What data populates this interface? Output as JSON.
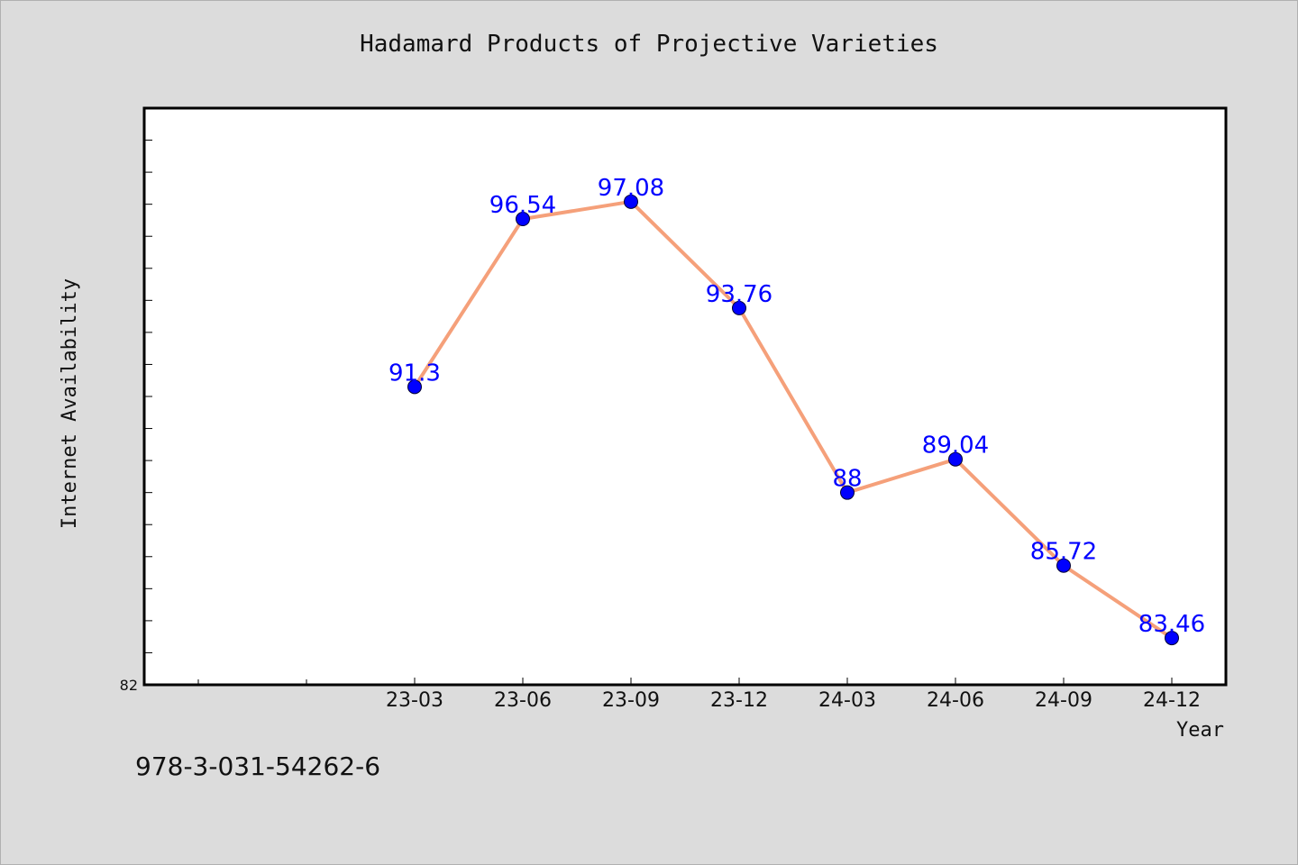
{
  "chart_data": {
    "type": "line",
    "title": "Hadamard Products of Projective Varieties",
    "xlabel": "Year",
    "ylabel": "Internet Availability",
    "categories": [
      "23-03",
      "23-06",
      "23-09",
      "23-12",
      "24-03",
      "24-06",
      "24-09",
      "24-12"
    ],
    "values": [
      91.3,
      96.54,
      97.08,
      93.76,
      88,
      89.04,
      85.72,
      83.46
    ],
    "data_labels": [
      "91.3",
      "96.54",
      "97.08",
      "93.76",
      "88",
      "89.04",
      "85.72",
      "83.46"
    ],
    "ylim": [
      82,
      100
    ],
    "y_tick_label": "82",
    "grid": false,
    "legend": "none",
    "colors": {
      "line": "#f5a07a",
      "marker": "#0000ff",
      "data_label": "#0000ff",
      "plot_background": "#ffffff",
      "figure_background": "#dcdcdc"
    }
  },
  "footer": {
    "text": "978-3-031-54262-6"
  }
}
